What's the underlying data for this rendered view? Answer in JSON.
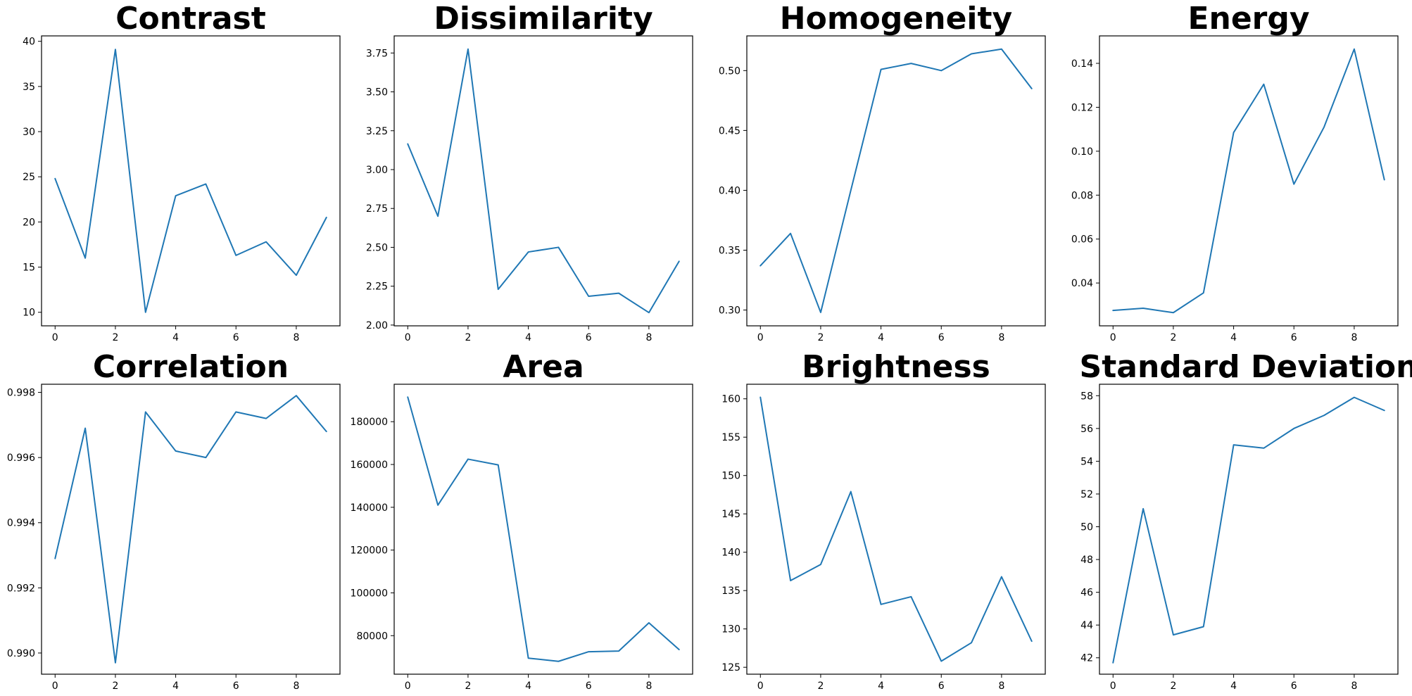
{
  "theme": {
    "line_color": "#1f77b4"
  },
  "chart_data": [
    {
      "type": "line",
      "title": "Contrast",
      "xlabel": "",
      "ylabel": "",
      "x": [
        0,
        1,
        2,
        3,
        4,
        5,
        6,
        7,
        8,
        9
      ],
      "series": [
        {
          "values": [
            24.8,
            16.0,
            39.1,
            10.0,
            22.9,
            24.2,
            16.3,
            17.8,
            14.1,
            20.5
          ]
        }
      ],
      "xlim": [
        -0.45,
        9.45
      ],
      "ylim": [
        8.5,
        40.6
      ],
      "xticks": [
        0,
        2,
        4,
        6,
        8
      ],
      "xtick_labels": [
        "0",
        "2",
        "4",
        "6",
        "8"
      ],
      "yticks": [
        10,
        15,
        20,
        25,
        30,
        35,
        40
      ],
      "ytick_labels": [
        "10",
        "15",
        "20",
        "25",
        "30",
        "35",
        "40"
      ],
      "grid": false,
      "legend": "none"
    },
    {
      "type": "line",
      "title": "Dissimilarity",
      "xlabel": "",
      "ylabel": "",
      "x": [
        0,
        1,
        2,
        3,
        4,
        5,
        6,
        7,
        8,
        9
      ],
      "series": [
        {
          "values": [
            3.165,
            2.7,
            3.775,
            2.23,
            2.47,
            2.5,
            2.185,
            2.205,
            2.08,
            2.41
          ]
        }
      ],
      "xlim": [
        -0.45,
        9.45
      ],
      "ylim": [
        1.995,
        3.86
      ],
      "xticks": [
        0,
        2,
        4,
        6,
        8
      ],
      "xtick_labels": [
        "0",
        "2",
        "4",
        "6",
        "8"
      ],
      "yticks": [
        2.0,
        2.25,
        2.5,
        2.75,
        3.0,
        3.25,
        3.5,
        3.75
      ],
      "ytick_labels": [
        "2.00",
        "2.25",
        "2.50",
        "2.75",
        "3.00",
        "3.25",
        "3.50",
        "3.75"
      ],
      "grid": false,
      "legend": "none"
    },
    {
      "type": "line",
      "title": "Homogeneity",
      "xlabel": "",
      "ylabel": "",
      "x": [
        0,
        1,
        2,
        3,
        4,
        5,
        6,
        7,
        8,
        9
      ],
      "series": [
        {
          "values": [
            0.337,
            0.364,
            0.298,
            0.4,
            0.501,
            0.506,
            0.5,
            0.514,
            0.518,
            0.485
          ]
        }
      ],
      "xlim": [
        -0.45,
        9.45
      ],
      "ylim": [
        0.2868,
        0.529
      ],
      "xticks": [
        0,
        2,
        4,
        6,
        8
      ],
      "xtick_labels": [
        "0",
        "2",
        "4",
        "6",
        "8"
      ],
      "yticks": [
        0.3,
        0.35,
        0.4,
        0.45,
        0.5
      ],
      "ytick_labels": [
        "0.30",
        "0.35",
        "0.40",
        "0.45",
        "0.50"
      ],
      "grid": false,
      "legend": "none"
    },
    {
      "type": "line",
      "title": "Energy",
      "xlabel": "",
      "ylabel": "",
      "x": [
        0,
        1,
        2,
        3,
        4,
        5,
        6,
        7,
        8,
        9
      ],
      "series": [
        {
          "values": [
            0.0275,
            0.0285,
            0.0265,
            0.0355,
            0.1085,
            0.1305,
            0.085,
            0.111,
            0.1465,
            0.087
          ]
        }
      ],
      "xlim": [
        -0.45,
        9.45
      ],
      "ylim": [
        0.0205,
        0.1525
      ],
      "xticks": [
        0,
        2,
        4,
        6,
        8
      ],
      "xtick_labels": [
        "0",
        "2",
        "4",
        "6",
        "8"
      ],
      "yticks": [
        0.04,
        0.06,
        0.08,
        0.1,
        0.12,
        0.14
      ],
      "ytick_labels": [
        "0.04",
        "0.06",
        "0.08",
        "0.10",
        "0.12",
        "0.14"
      ],
      "grid": false,
      "legend": "none"
    },
    {
      "type": "line",
      "title": "Correlation",
      "xlabel": "",
      "ylabel": "",
      "x": [
        0,
        1,
        2,
        3,
        4,
        5,
        6,
        7,
        8,
        9
      ],
      "series": [
        {
          "values": [
            0.9929,
            0.9969,
            0.9897,
            0.9974,
            0.9962,
            0.996,
            0.9974,
            0.9972,
            0.9979,
            0.9968
          ]
        }
      ],
      "xlim": [
        -0.45,
        9.45
      ],
      "ylim": [
        0.98935,
        0.99825
      ],
      "xticks": [
        0,
        2,
        4,
        6,
        8
      ],
      "xtick_labels": [
        "0",
        "2",
        "4",
        "6",
        "8"
      ],
      "yticks": [
        0.99,
        0.992,
        0.994,
        0.996,
        0.998
      ],
      "ytick_labels": [
        "0.990",
        "0.992",
        "0.994",
        "0.996",
        "0.998"
      ],
      "grid": false,
      "legend": "none"
    },
    {
      "type": "line",
      "title": "Area",
      "xlabel": "",
      "ylabel": "",
      "x": [
        0,
        1,
        2,
        3,
        4,
        5,
        6,
        7,
        8,
        9
      ],
      "series": [
        {
          "values": [
            191500,
            141000,
            162500,
            159800,
            69500,
            68000,
            72500,
            72800,
            86000,
            73500
          ]
        }
      ],
      "xlim": [
        -0.45,
        9.45
      ],
      "ylim": [
        62000,
        197500
      ],
      "xticks": [
        0,
        2,
        4,
        6,
        8
      ],
      "xtick_labels": [
        "0",
        "2",
        "4",
        "6",
        "8"
      ],
      "yticks": [
        80000,
        100000,
        120000,
        140000,
        160000,
        180000
      ],
      "ytick_labels": [
        "80000",
        "100000",
        "120000",
        "140000",
        "160000",
        "180000"
      ],
      "grid": false,
      "legend": "none"
    },
    {
      "type": "line",
      "title": "Brightness",
      "xlabel": "",
      "ylabel": "",
      "x": [
        0,
        1,
        2,
        3,
        4,
        5,
        6,
        7,
        8,
        9
      ],
      "series": [
        {
          "values": [
            160.2,
            136.3,
            138.4,
            147.9,
            133.2,
            134.2,
            125.8,
            128.2,
            136.8,
            128.4
          ]
        }
      ],
      "xlim": [
        -0.45,
        9.45
      ],
      "ylim": [
        124.1,
        161.9
      ],
      "xticks": [
        0,
        2,
        4,
        6,
        8
      ],
      "xtick_labels": [
        "0",
        "2",
        "4",
        "6",
        "8"
      ],
      "yticks": [
        125,
        130,
        135,
        140,
        145,
        150,
        155,
        160
      ],
      "ytick_labels": [
        "125",
        "130",
        "135",
        "140",
        "145",
        "150",
        "155",
        "160"
      ],
      "grid": false,
      "legend": "none"
    },
    {
      "type": "line",
      "title": "Standard Deviation",
      "xlabel": "",
      "ylabel": "",
      "x": [
        0,
        1,
        2,
        3,
        4,
        5,
        6,
        7,
        8,
        9
      ],
      "series": [
        {
          "values": [
            41.7,
            51.1,
            43.4,
            43.9,
            55.0,
            54.8,
            56.0,
            56.8,
            57.9,
            57.1
          ]
        }
      ],
      "xlim": [
        -0.45,
        9.45
      ],
      "ylim": [
        41.0,
        58.7
      ],
      "xticks": [
        0,
        2,
        4,
        6,
        8
      ],
      "xtick_labels": [
        "0",
        "2",
        "4",
        "6",
        "8"
      ],
      "yticks": [
        42,
        44,
        46,
        48,
        50,
        52,
        54,
        56,
        58
      ],
      "ytick_labels": [
        "42",
        "44",
        "46",
        "48",
        "50",
        "52",
        "54",
        "56",
        "58"
      ],
      "grid": false,
      "legend": "none"
    }
  ]
}
